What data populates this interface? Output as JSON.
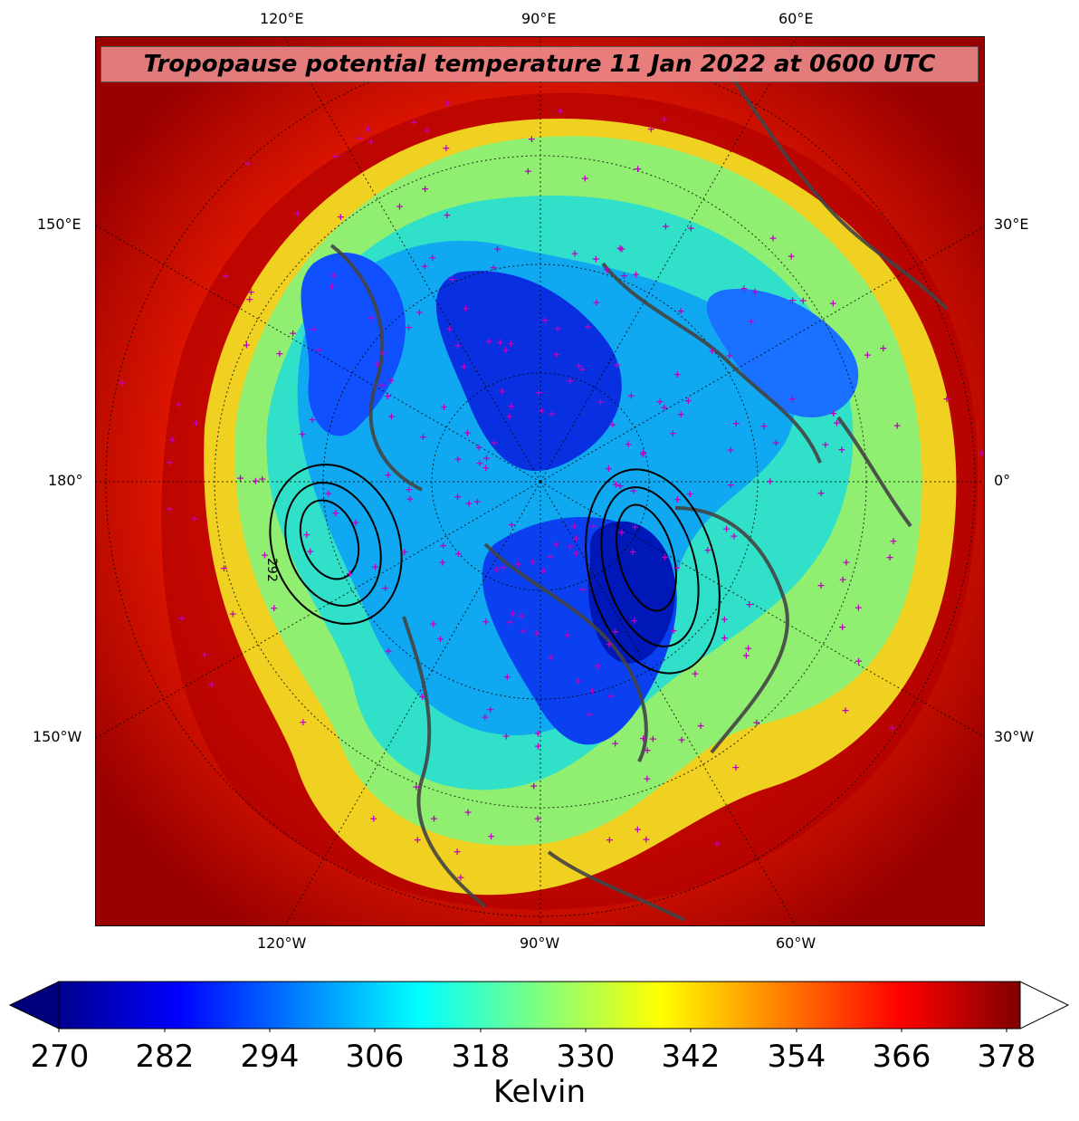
{
  "title": "Tropopause potential temperature 11 Jan 2022 at 0600 UTC",
  "longitude_labels": {
    "top": [
      "120°E",
      "90°E",
      "60°E"
    ],
    "bottom": [
      "120°W",
      "90°W",
      "60°W"
    ],
    "left": [
      "150°E",
      "180°",
      "150°W"
    ],
    "right": [
      "30°E",
      "0°",
      "30°W"
    ]
  },
  "contour_label": "292",
  "colorbar": {
    "label": "Kelvin",
    "ticks": [
      "270",
      "282",
      "294",
      "306",
      "318",
      "330",
      "342",
      "354",
      "366",
      "378"
    ],
    "min": 270,
    "max": 384,
    "extend": "both",
    "under_color": "#00007f",
    "over_color": "#ffffff",
    "colormap": "jet"
  },
  "colors": {
    "outer_red": "#a00000",
    "yellow_band": "#e8e010",
    "green": "#8ef07a",
    "cyan": "#20e0d0",
    "blue": "#1060ff",
    "dark_blue": "#0010c0",
    "coastline": "#444444",
    "station_marker": "#c000c0"
  }
}
